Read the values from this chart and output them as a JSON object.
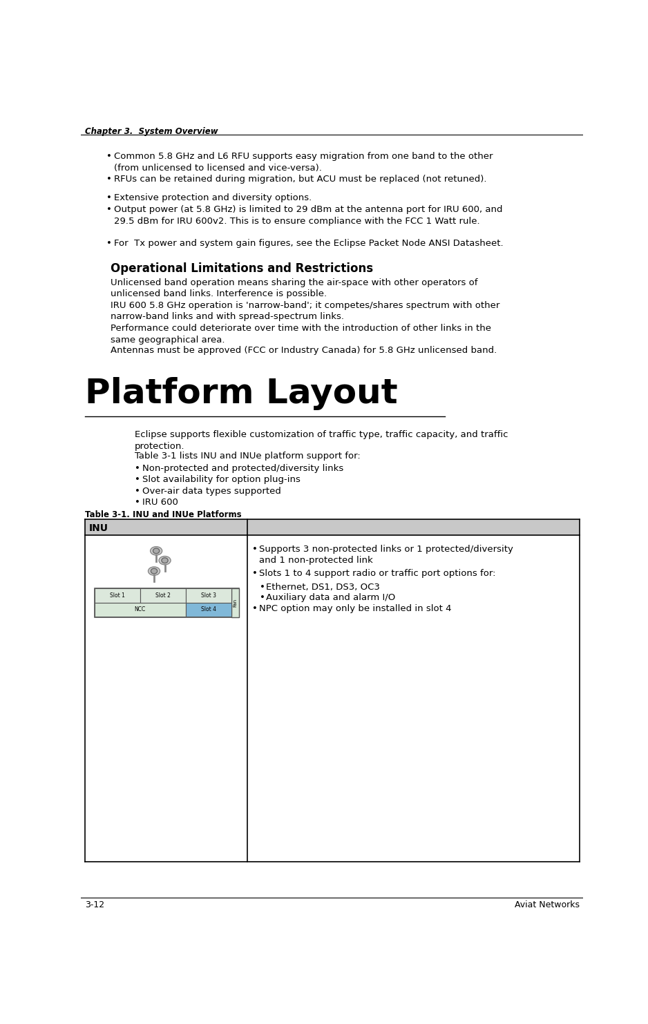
{
  "header_text": "Chapter 3.  System Overview",
  "footer_left": "3-12",
  "footer_right": "Aviat Networks",
  "bullet_items": [
    "Common 5.8 GHz and L6 RFU supports easy migration from one band to the other\n(from unlicensed to licensed and vice-versa).",
    "RFUs can be retained during migration, but ACU must be replaced (not retuned).",
    "Extensive protection and diversity options.",
    "Output power (at 5.8 GHz) is limited to 29 dBm at the antenna port for IRU 600, and\n29.5 dBm for IRU 600v2. This is to ensure compliance with the FCC 1 Watt rule.",
    "For  Tx power and system gain figures, see the Eclipse Packet Node ANSI Datasheet."
  ],
  "section_heading": "Operational Limitations and Restrictions",
  "op_paragraphs": [
    "Unlicensed band operation means sharing the air-space with other operators of\nunlicensed band links. Interference is possible.",
    "IRU 600 5.8 GHz operation is 'narrow-band'; it competes/shares spectrum with other\nnarrow-band links and with spread-spectrum links.",
    "Performance could deteriorate over time with the introduction of other links in the\nsame geographical area.",
    "Antennas must be approved (FCC or Industry Canada) for 5.8 GHz unlicensed band."
  ],
  "platform_heading": "Platform Layout",
  "platform_intro": "Eclipse supports flexible customization of traffic type, traffic capacity, and traffic\nprotection.",
  "table_intro": "Table 3-1 lists INU and INUe platform support for:",
  "platform_bullets": [
    "Non-protected and protected/diversity links",
    "Slot availability for option plug-ins",
    "Over-air data types supported",
    "IRU 600"
  ],
  "table_title": "Table 3-1. INU and INUe Platforms",
  "table_col1_header": "INU",
  "table_col2_bullets": [
    "Supports 3 non-protected links or 1 protected/diversity\nand 1 non-protected link",
    "Slots 1 to 4 support radio or traffic port options for:",
    "Ethernet, DS1, DS3, OC3",
    "Auxiliary data and alarm I/O",
    "NPC option may only be installed in slot 4"
  ],
  "bg_color": "#ffffff",
  "text_color": "#000000",
  "table_header_bg": "#c8c8c8",
  "table_row_bg": "#e8e8e8",
  "slot1_color": "#d8e8d8",
  "slot2_color": "#d8e8d8",
  "slot3_color": "#d8e8d8",
  "ncc_color": "#d8e8d8",
  "slot4_color": "#80b8d8",
  "fan_color": "#d8e8d8"
}
